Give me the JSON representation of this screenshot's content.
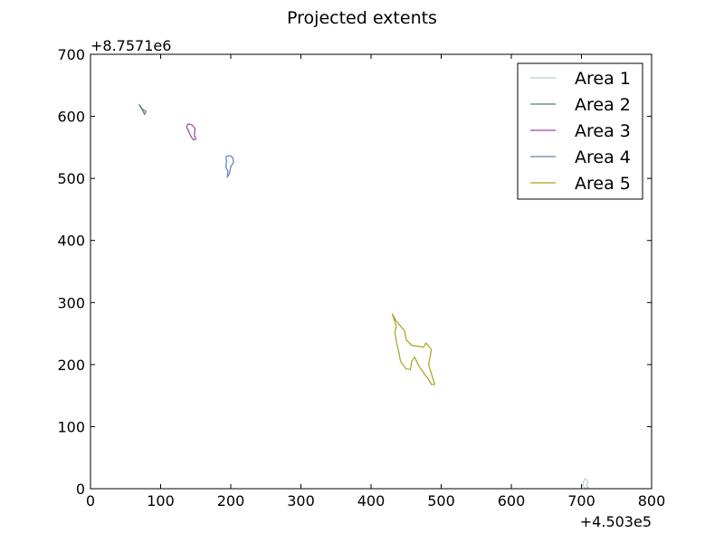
{
  "chart_data": {
    "type": "line",
    "title": "Projected extents",
    "xlabel": "",
    "ylabel": "",
    "x_offset_label": "+4.503e5",
    "y_offset_label": "+8.7571e6",
    "xlim": [
      0,
      800
    ],
    "ylim": [
      0,
      700
    ],
    "x_ticks": [
      0,
      100,
      200,
      300,
      400,
      500,
      600,
      700,
      800
    ],
    "y_ticks": [
      0,
      100,
      200,
      300,
      400,
      500,
      600,
      700
    ],
    "grid": false,
    "legend_position": "top-right",
    "series": [
      {
        "name": "Area 1",
        "color": "#b9cfd1",
        "points": [
          [
            702,
            4
          ],
          [
            703,
            12
          ],
          [
            705,
            16
          ],
          [
            708,
            14
          ],
          [
            709,
            9
          ],
          [
            707,
            5
          ],
          [
            710,
            2
          ],
          [
            705,
            1
          ],
          [
            702,
            4
          ]
        ]
      },
      {
        "name": "Area 2",
        "color": "#5f7a6c",
        "points": [
          [
            69,
            619
          ],
          [
            72,
            614
          ],
          [
            75,
            608
          ],
          [
            77,
            603
          ],
          [
            79,
            608
          ],
          [
            76,
            610
          ],
          [
            73,
            613
          ],
          [
            71,
            617
          ],
          [
            69,
            619
          ]
        ]
      },
      {
        "name": "Area 3",
        "color": "#a33fa1",
        "points": [
          [
            139,
            588
          ],
          [
            145,
            586
          ],
          [
            149,
            580
          ],
          [
            148,
            571
          ],
          [
            150,
            563
          ],
          [
            147,
            562
          ],
          [
            144,
            566
          ],
          [
            141,
            573
          ],
          [
            139,
            579
          ],
          [
            137,
            582
          ],
          [
            139,
            588
          ]
        ]
      },
      {
        "name": "Area 4",
        "color": "#5f7faf",
        "points": [
          [
            193,
            535
          ],
          [
            199,
            537
          ],
          [
            203,
            533
          ],
          [
            204,
            526
          ],
          [
            200,
            519
          ],
          [
            198,
            507
          ],
          [
            195,
            502
          ],
          [
            196,
            511
          ],
          [
            193,
            518
          ],
          [
            194,
            529
          ],
          [
            193,
            535
          ]
        ]
      },
      {
        "name": "Area 5",
        "color": "#a8a21a",
        "points": [
          [
            430,
            282
          ],
          [
            436,
            270
          ],
          [
            442,
            262
          ],
          [
            448,
            254
          ],
          [
            450,
            240
          ],
          [
            458,
            231
          ],
          [
            470,
            229
          ],
          [
            475,
            228
          ],
          [
            478,
            235
          ],
          [
            482,
            230
          ],
          [
            486,
            224
          ],
          [
            484,
            212
          ],
          [
            482,
            200
          ],
          [
            486,
            185
          ],
          [
            491,
            168
          ],
          [
            486,
            168
          ],
          [
            482,
            176
          ],
          [
            476,
            185
          ],
          [
            468,
            198
          ],
          [
            462,
            212
          ],
          [
            458,
            205
          ],
          [
            456,
            192
          ],
          [
            450,
            193
          ],
          [
            442,
            205
          ],
          [
            440,
            218
          ],
          [
            437,
            232
          ],
          [
            434,
            251
          ],
          [
            436,
            262
          ],
          [
            430,
            282
          ]
        ]
      }
    ]
  }
}
